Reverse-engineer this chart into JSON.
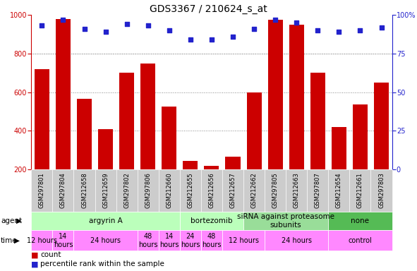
{
  "title": "GDS3367 / 210624_s_at",
  "samples": [
    "GSM297801",
    "GSM297804",
    "GSM212658",
    "GSM212659",
    "GSM297802",
    "GSM297806",
    "GSM212660",
    "GSM212655",
    "GSM212656",
    "GSM212657",
    "GSM212662",
    "GSM297805",
    "GSM212663",
    "GSM297807",
    "GSM212654",
    "GSM212661",
    "GSM297803"
  ],
  "counts": [
    720,
    980,
    565,
    410,
    700,
    750,
    525,
    245,
    220,
    265,
    600,
    975,
    950,
    700,
    420,
    535,
    650
  ],
  "percentiles": [
    93,
    97,
    91,
    89,
    94,
    93,
    90,
    84,
    84,
    86,
    91,
    97,
    95,
    90,
    89,
    90,
    92
  ],
  "ylim_left": [
    200,
    1000
  ],
  "ylim_right": [
    0,
    100
  ],
  "yticks_left": [
    200,
    400,
    600,
    800,
    1000
  ],
  "yticks_right": [
    0,
    25,
    50,
    75,
    100
  ],
  "bar_color": "#cc0000",
  "dot_color": "#2222cc",
  "bg_color": "#ffffff",
  "grid_color": "#888888",
  "left_axis_color": "#cc0000",
  "right_axis_color": "#2222cc",
  "sample_bg_color": "#cccccc",
  "agent_color_1": "#bbffbb",
  "agent_color_2": "#77cc77",
  "agent_color_3": "#44bb44",
  "time_color": "#ff88ff",
  "title_fontsize": 10,
  "tick_fontsize": 7,
  "sample_fontsize": 6,
  "legend_fontsize": 7.5,
  "label_fontsize": 7.5,
  "agent_groups": [
    {
      "label": "argyrin A",
      "start": 0,
      "end": 6,
      "color": "#bbffbb"
    },
    {
      "label": "bortezomib",
      "start": 7,
      "end": 9,
      "color": "#bbffbb"
    },
    {
      "label": "siRNA against proteasome\nsubunits",
      "start": 10,
      "end": 13,
      "color": "#99dd99"
    },
    {
      "label": "none",
      "start": 14,
      "end": 16,
      "color": "#55bb55"
    }
  ],
  "time_groups": [
    {
      "label": "12 hours",
      "start": 0,
      "end": 0,
      "color": "#ff88ff"
    },
    {
      "label": "14\nhours",
      "start": 1,
      "end": 1,
      "color": "#ff88ff"
    },
    {
      "label": "24 hours",
      "start": 2,
      "end": 4,
      "color": "#ff88ff"
    },
    {
      "label": "48\nhours",
      "start": 5,
      "end": 5,
      "color": "#ff88ff"
    },
    {
      "label": "14\nhours",
      "start": 6,
      "end": 6,
      "color": "#ff88ff"
    },
    {
      "label": "24\nhours",
      "start": 7,
      "end": 7,
      "color": "#ff88ff"
    },
    {
      "label": "48\nhours",
      "start": 8,
      "end": 8,
      "color": "#ff88ff"
    },
    {
      "label": "12 hours",
      "start": 9,
      "end": 10,
      "color": "#ff88ff"
    },
    {
      "label": "24 hours",
      "start": 11,
      "end": 13,
      "color": "#ff88ff"
    },
    {
      "label": "control",
      "start": 14,
      "end": 16,
      "color": "#ff88ff"
    }
  ]
}
